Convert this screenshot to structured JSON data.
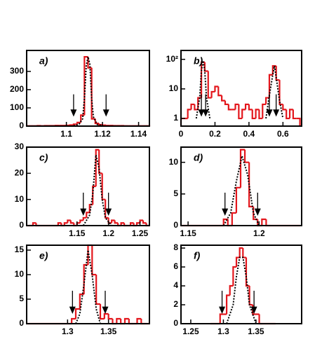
{
  "chart_data": [
    {
      "type": "histogram",
      "label": "a)",
      "color": "#e3161c",
      "curve_color": "#000000",
      "xlim": [
        1.078,
        1.146
      ],
      "ylim": [
        0,
        415
      ],
      "xticks": [
        1.1,
        1.12,
        1.14
      ],
      "yticks": [
        0,
        100,
        200,
        300
      ],
      "bins": [
        1.078,
        1.08,
        1.082,
        1.084,
        1.086,
        1.088,
        1.09,
        1.092,
        1.094,
        1.096,
        1.098,
        1.1,
        1.102,
        1.104,
        1.106,
        1.108,
        1.11,
        1.112,
        1.114,
        1.116,
        1.118,
        1.12,
        1.122,
        1.124,
        1.126,
        1.128,
        1.13,
        1.132,
        1.134,
        1.136,
        1.138,
        1.14,
        1.142,
        1.144,
        1.146
      ],
      "values": [
        1,
        1,
        1,
        2,
        1,
        2,
        2,
        2,
        3,
        3,
        3,
        4,
        6,
        10,
        20,
        60,
        380,
        320,
        40,
        15,
        8,
        5,
        3,
        3,
        2,
        2,
        2,
        1,
        1,
        1,
        1,
        1,
        1,
        1
      ],
      "curve": {
        "x": [
          1.104,
          1.107,
          1.109,
          1.11,
          1.111,
          1.112,
          1.113,
          1.114,
          1.115,
          1.117,
          1.12
        ],
        "values": [
          2,
          10,
          40,
          150,
          330,
          380,
          340,
          150,
          50,
          10,
          2
        ]
      },
      "arrows": [
        1.104,
        1.122
      ]
    },
    {
      "type": "histogram",
      "label": "b)",
      "color": "#e3161c",
      "curve_color": "#000000",
      "log": true,
      "xlim": [
        0,
        0.71
      ],
      "ylim": [
        0.55,
        200
      ],
      "xticks": [
        0,
        0.2,
        0.4,
        0.6
      ],
      "yticks": [
        1,
        10,
        {
          "value": 100,
          "label": "10²"
        }
      ],
      "bins": [
        0,
        0.02,
        0.04,
        0.06,
        0.08,
        0.1,
        0.12,
        0.14,
        0.16,
        0.18,
        0.2,
        0.22,
        0.24,
        0.26,
        0.28,
        0.3,
        0.32,
        0.34,
        0.36,
        0.38,
        0.4,
        0.42,
        0.44,
        0.46,
        0.48,
        0.5,
        0.52,
        0.54,
        0.56,
        0.58,
        0.6,
        0.62,
        0.64,
        0.66,
        0.68,
        0.7
      ],
      "values": [
        1,
        1,
        2,
        3,
        2,
        5,
        80,
        40,
        5,
        8,
        12,
        6,
        4,
        3,
        2,
        2,
        3,
        1,
        2,
        3,
        2,
        1,
        2,
        1,
        3,
        5,
        30,
        60,
        20,
        3,
        2,
        1,
        2,
        1,
        1
      ],
      "curve": {
        "x": [
          0.09,
          0.11,
          0.12,
          0.13,
          0.14,
          0.15,
          0.17,
          0.3,
          0.5,
          0.52,
          0.54,
          0.55,
          0.56,
          0.58,
          0.6
        ],
        "values": [
          1,
          5,
          40,
          90,
          40,
          5,
          1,
          null,
          1,
          6,
          30,
          60,
          25,
          4,
          1
        ]
      },
      "arrows": [
        0.12,
        0.145,
        0.52,
        0.56
      ]
    },
    {
      "type": "histogram",
      "label": "c)",
      "color": "#e3161c",
      "curve_color": "#000000",
      "xlim": [
        1.07,
        1.265
      ],
      "ylim": [
        0,
        30
      ],
      "xticks": [
        1.15,
        1.2,
        1.25
      ],
      "yticks": [
        0,
        10,
        20,
        30
      ],
      "bins": [
        1.07,
        1.075,
        1.08,
        1.085,
        1.09,
        1.095,
        1.1,
        1.105,
        1.11,
        1.115,
        1.12,
        1.125,
        1.13,
        1.135,
        1.14,
        1.145,
        1.15,
        1.155,
        1.16,
        1.165,
        1.17,
        1.175,
        1.18,
        1.185,
        1.19,
        1.195,
        1.2,
        1.205,
        1.21,
        1.215,
        1.22,
        1.225,
        1.23,
        1.235,
        1.24,
        1.245,
        1.25,
        1.255,
        1.26,
        1.265
      ],
      "values": [
        0,
        0,
        1,
        0,
        0,
        0,
        0,
        0,
        0,
        0,
        1,
        0,
        1,
        2,
        1,
        0,
        1,
        2,
        3,
        5,
        8,
        15,
        29,
        20,
        10,
        3,
        1,
        2,
        1,
        0,
        1,
        0,
        0,
        1,
        0,
        1,
        2,
        1,
        0
      ],
      "curve": {
        "x": [
          1.16,
          1.17,
          1.175,
          1.18,
          1.185,
          1.19,
          1.195,
          1.205
        ],
        "values": [
          0,
          4,
          12,
          27,
          22,
          10,
          3,
          0
        ]
      },
      "arrows": [
        1.16,
        1.2
      ]
    },
    {
      "type": "histogram",
      "label": "d)",
      "color": "#e3161c",
      "curve_color": "#000000",
      "xlim": [
        1.145,
        1.23
      ],
      "ylim": [
        0,
        12.4
      ],
      "xticks": [
        1.15,
        1.2
      ],
      "yticks": [
        0,
        5,
        10
      ],
      "bins": [
        1.145,
        1.148,
        1.151,
        1.154,
        1.157,
        1.16,
        1.163,
        1.166,
        1.169,
        1.172,
        1.175,
        1.178,
        1.181,
        1.184,
        1.187,
        1.19,
        1.193,
        1.196,
        1.199,
        1.202,
        1.205,
        1.208,
        1.211,
        1.214,
        1.217,
        1.22,
        1.223,
        1.226,
        1.229
      ],
      "values": [
        0,
        0,
        0,
        0,
        0,
        0,
        0,
        0,
        0,
        0,
        1,
        0,
        2,
        6,
        12,
        10,
        3,
        1,
        0,
        1,
        0,
        0,
        0,
        0,
        0,
        0,
        0,
        0
      ],
      "curve": {
        "x": [
          1.175,
          1.18,
          1.184,
          1.188,
          1.192,
          1.196,
          1.2
        ],
        "values": [
          0,
          2,
          7,
          11,
          8,
          2,
          0
        ]
      },
      "arrows": [
        1.176,
        1.199
      ]
    },
    {
      "type": "histogram",
      "label": "e)",
      "color": "#e3161c",
      "curve_color": "#000000",
      "xlim": [
        1.25,
        1.4
      ],
      "ylim": [
        0,
        16
      ],
      "xticks": [
        1.3,
        1.35
      ],
      "yticks": [
        0,
        5,
        10,
        15
      ],
      "bins": [
        1.25,
        1.255,
        1.26,
        1.265,
        1.27,
        1.275,
        1.28,
        1.285,
        1.29,
        1.295,
        1.3,
        1.305,
        1.31,
        1.315,
        1.32,
        1.325,
        1.33,
        1.335,
        1.34,
        1.345,
        1.35,
        1.355,
        1.36,
        1.365,
        1.37,
        1.375,
        1.38,
        1.385,
        1.39,
        1.395,
        1.4
      ],
      "values": [
        0,
        0,
        0,
        0,
        0,
        0,
        0,
        0,
        0,
        0,
        0,
        1,
        3,
        6,
        12,
        16,
        10,
        4,
        1,
        2,
        1,
        0,
        1,
        0,
        1,
        0,
        0,
        1,
        0,
        0
      ],
      "curve": {
        "x": [
          1.31,
          1.315,
          1.32,
          1.325,
          1.33,
          1.335,
          1.34
        ],
        "values": [
          0,
          2,
          8,
          15,
          10,
          3,
          0
        ]
      },
      "arrows": [
        1.306,
        1.346
      ]
    },
    {
      "type": "histogram",
      "label": "f)",
      "color": "#e3161c",
      "curve_color": "#000000",
      "xlim": [
        1.235,
        1.42
      ],
      "ylim": [
        0,
        8.3
      ],
      "xticks": [
        1.25,
        1.3,
        1.35
      ],
      "yticks": [
        0,
        2,
        4,
        6,
        8
      ],
      "bins": [
        1.28,
        1.285,
        1.29,
        1.295,
        1.3,
        1.305,
        1.31,
        1.315,
        1.32,
        1.325,
        1.33,
        1.335,
        1.34,
        1.345,
        1.35,
        1.355,
        1.36,
        1.365,
        1.37,
        1.375,
        1.38
      ],
      "values": [
        0,
        0,
        0,
        1,
        1,
        3,
        4,
        6,
        7,
        8,
        7,
        4,
        2,
        1,
        1,
        0,
        0,
        0,
        0,
        0
      ],
      "curve": {
        "x": [
          1.305,
          1.315,
          1.32,
          1.325,
          1.33,
          1.335,
          1.34,
          1.35
        ],
        "values": [
          0,
          2,
          5,
          7,
          7,
          5,
          2,
          0
        ]
      },
      "arrows": [
        1.298,
        1.347
      ]
    }
  ]
}
